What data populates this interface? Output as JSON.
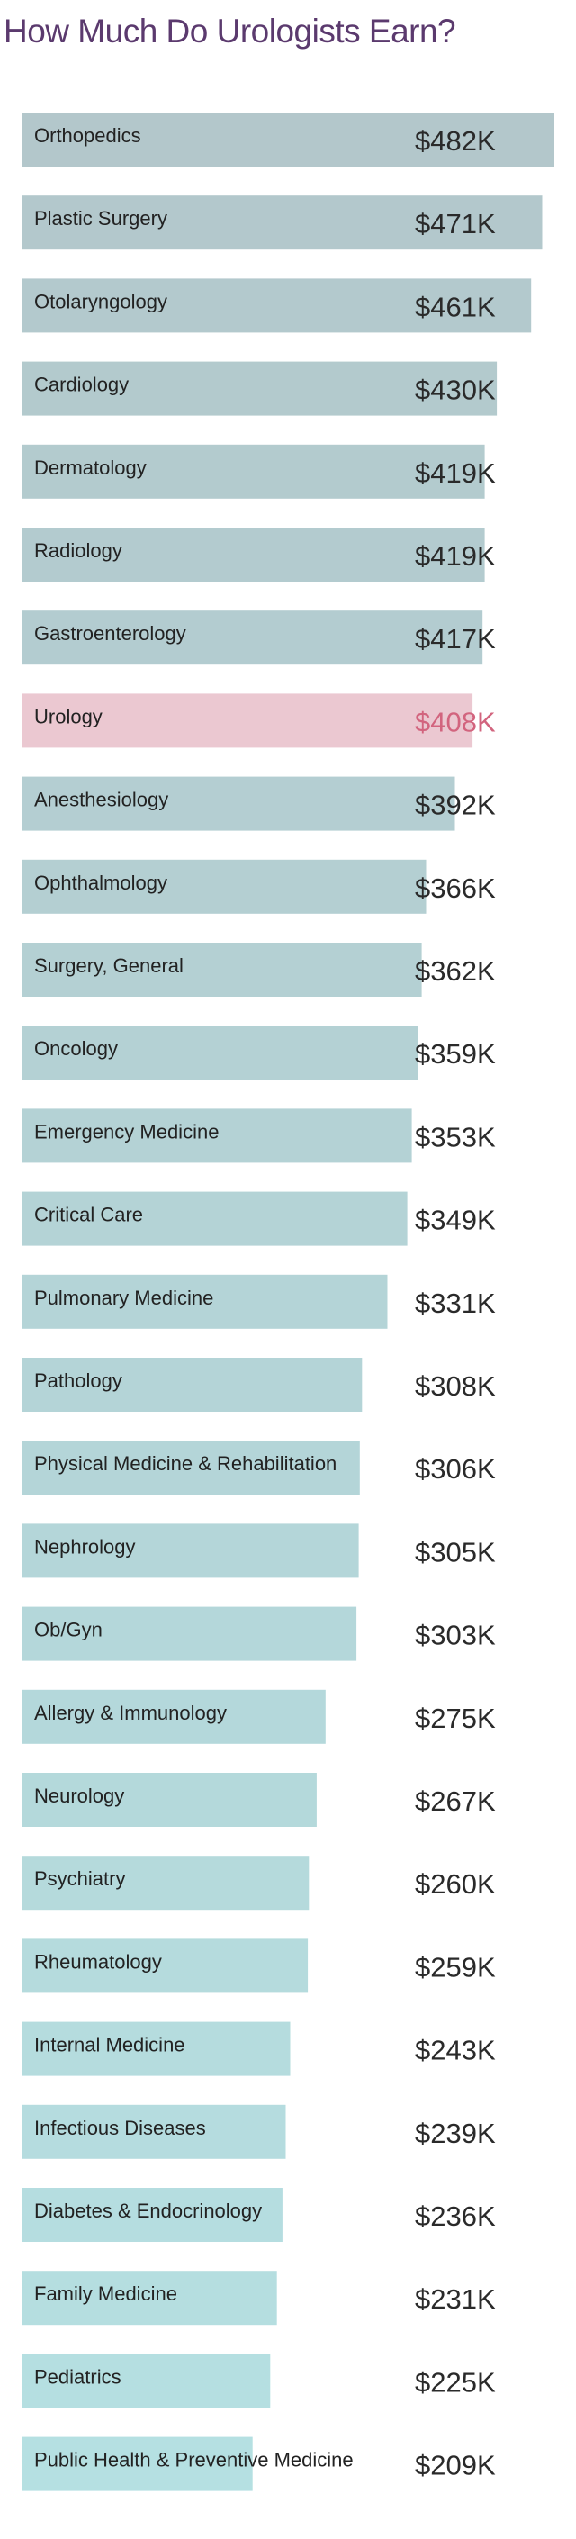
{
  "chart_data": {
    "type": "bar",
    "orientation": "horizontal",
    "title": "How Much Do Urologists Earn?",
    "categories": [
      "Orthopedics",
      "Plastic Surgery",
      "Otolaryngology",
      "Cardiology",
      "Dermatology",
      "Radiology",
      "Gastroenterology",
      "Urology",
      "Anesthesiology",
      "Ophthalmology",
      "Surgery, General",
      "Oncology",
      "Emergency Medicine",
      "Critical Care",
      "Pulmonary Medicine",
      "Pathology",
      "Physical Medicine & Rehabilitation",
      "Nephrology",
      "Ob/Gyn",
      "Allergy & Immunology",
      "Neurology",
      "Psychiatry",
      "Rheumatology",
      "Internal Medicine",
      "Infectious Diseases",
      "Diabetes & Endocrinology",
      "Family Medicine",
      "Pediatrics",
      "Public Health & Preventive Medicine"
    ],
    "values": [
      482,
      471,
      461,
      430,
      419,
      419,
      417,
      408,
      392,
      366,
      362,
      359,
      353,
      349,
      331,
      308,
      306,
      305,
      303,
      275,
      267,
      260,
      259,
      243,
      239,
      236,
      231,
      225,
      209
    ],
    "value_labels": [
      "$482K",
      "$471K",
      "$461K",
      "$430K",
      "$419K",
      "$419K",
      "$417K",
      "$408K",
      "$392K",
      "$366K",
      "$362K",
      "$359K",
      "$353K",
      "$349K",
      "$331K",
      "$308K",
      "$306K",
      "$305K",
      "$303K",
      "$275K",
      "$267K",
      "$260K",
      "$259K",
      "$243K",
      "$239K",
      "$236K",
      "$231K",
      "$225K",
      "$209K"
    ],
    "xlim": [
      0,
      482
    ],
    "grid": false,
    "legend": "none",
    "highlight_category": "Urology",
    "colors": {
      "title": "#5b3a6e",
      "bar_top": "#b3c7cb",
      "bar_bottom": "#b5e0e2",
      "highlight_bar": "#ebc8d1",
      "label_text": "#222222",
      "value_text": "#2a2a2a",
      "highlight_text": "#d2647e"
    }
  }
}
